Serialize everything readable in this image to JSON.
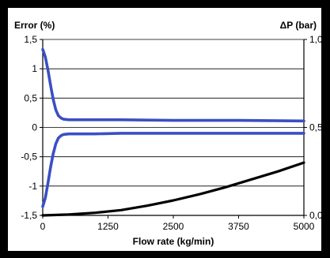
{
  "chart_data": {
    "type": "line",
    "xlabel": "Flow rate (kg/min)",
    "ylabel_left": "Error (%)",
    "ylabel_right": "ΔP (bar)",
    "xlim": [
      0,
      5000
    ],
    "ylim_left": [
      -1.5,
      1.5
    ],
    "ylim_right": [
      0.0,
      1.0
    ],
    "grid": true,
    "x_ticks": [
      "0",
      "1250",
      "2500",
      "3750",
      "5000"
    ],
    "y_left_ticks": [
      "1,5",
      "1",
      "0,5",
      "0",
      "-0,5",
      "-1",
      "-1,5"
    ],
    "y_right_ticks": [
      "1,0",
      "0,5",
      "0,0"
    ],
    "colors": {
      "error": "#3a4fc4",
      "dp": "#000000"
    },
    "series": [
      {
        "axis": "left",
        "color": "#3a4fc4",
        "x": [
          0,
          50,
          100,
          150,
          200,
          250,
          300,
          350,
          400,
          500,
          700,
          1000,
          1500,
          2500,
          3750,
          5000
        ],
        "y": [
          1.33,
          1.2,
          0.98,
          0.72,
          0.48,
          0.3,
          0.2,
          0.16,
          0.14,
          0.13,
          0.13,
          0.13,
          0.13,
          0.12,
          0.12,
          0.11
        ]
      },
      {
        "axis": "left",
        "color": "#3a4fc4",
        "x": [
          0,
          50,
          100,
          150,
          200,
          250,
          300,
          350,
          400,
          500,
          700,
          1000,
          1500,
          2500,
          3750,
          5000
        ],
        "y": [
          -1.35,
          -1.2,
          -0.95,
          -0.68,
          -0.45,
          -0.28,
          -0.18,
          -0.14,
          -0.12,
          -0.11,
          -0.11,
          -0.11,
          -0.1,
          -0.1,
          -0.1,
          -0.1
        ]
      },
      {
        "axis": "right",
        "color": "#000000",
        "x": [
          0,
          500,
          1000,
          1500,
          2000,
          2500,
          3000,
          3500,
          4000,
          4500,
          5000
        ],
        "y": [
          0.0,
          0.005,
          0.015,
          0.03,
          0.055,
          0.085,
          0.12,
          0.16,
          0.205,
          0.25,
          0.3
        ]
      }
    ]
  }
}
